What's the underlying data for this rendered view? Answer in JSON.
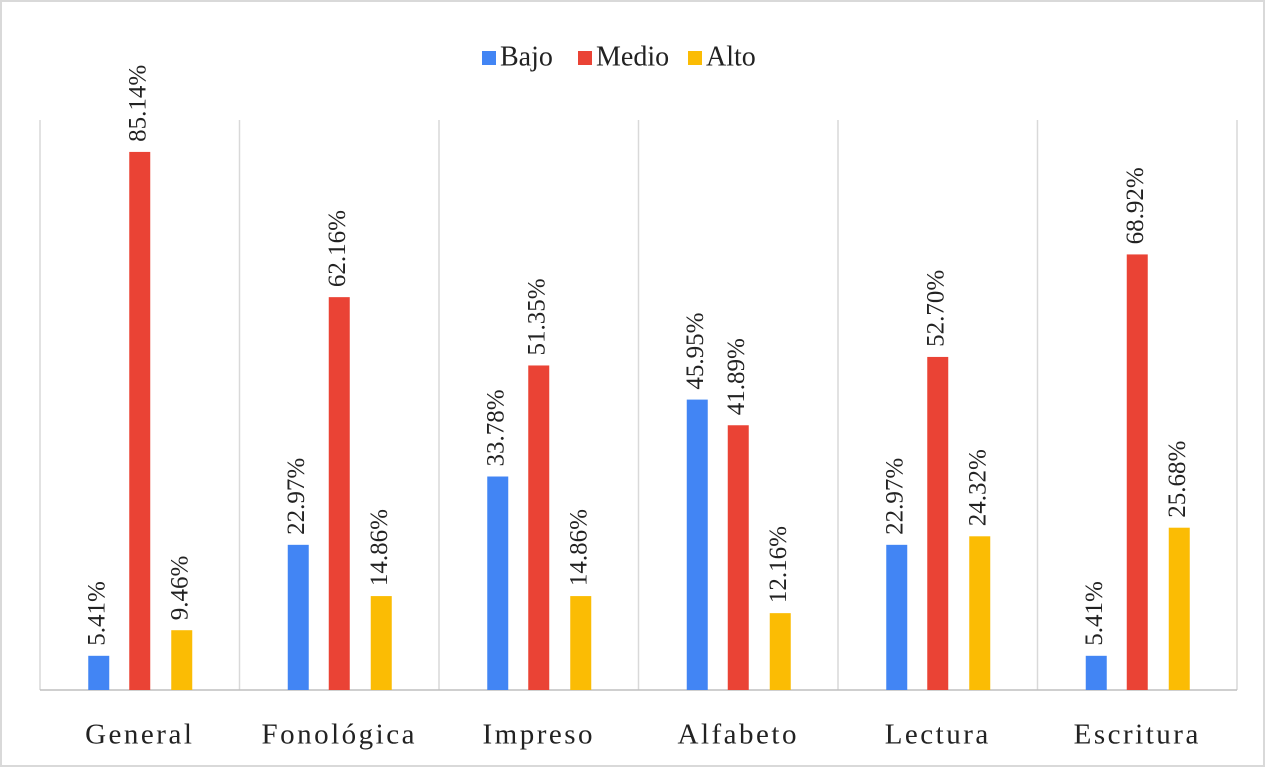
{
  "chart_data": {
    "type": "bar",
    "categories": [
      "General",
      "Fonológica",
      "Impreso",
      "Alfabeto",
      "Lectura",
      "Escritura"
    ],
    "series": [
      {
        "name": "Bajo",
        "color": "#4285f4",
        "values": [
          5.41,
          22.97,
          33.78,
          45.95,
          22.97,
          5.41
        ],
        "value_labels": [
          "5.41%",
          "22.97%",
          "33.78%",
          "45.95%",
          "22.97%",
          "5.41%"
        ]
      },
      {
        "name": "Medio",
        "color": "#ea4335",
        "values": [
          85.14,
          62.16,
          51.35,
          41.89,
          52.7,
          68.92
        ],
        "value_labels": [
          "85.14%",
          "62.16%",
          "51.35%",
          "41.89%",
          "52.70%",
          "68.92%"
        ]
      },
      {
        "name": "Alto",
        "color": "#fbbc04",
        "values": [
          9.46,
          14.86,
          14.86,
          12.16,
          24.32,
          25.68
        ],
        "value_labels": [
          "9.46%",
          "14.86%",
          "14.86%",
          "12.16%",
          "24.32%",
          "25.68%"
        ]
      }
    ],
    "legend": "top"
  }
}
